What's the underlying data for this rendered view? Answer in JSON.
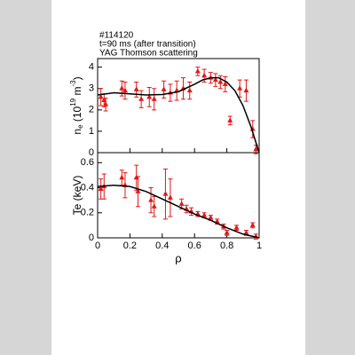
{
  "chart_data": [
    {
      "type": "scatter",
      "annotations": [
        "#114120",
        "t=90 ms (after transition)",
        "YAG Thomson scattering"
      ],
      "ylabel_parts": [
        "n",
        "e",
        " (10",
        "19",
        " m",
        "-3",
        ")"
      ],
      "xlim": [
        0,
        1
      ],
      "xticks": [
        0,
        0.2,
        0.4,
        0.6,
        0.8,
        1
      ],
      "ylim": [
        0,
        4.4
      ],
      "yticks": [
        0,
        1,
        2,
        3,
        4
      ],
      "series": [
        {
          "style": "points",
          "color": "#e01818",
          "x": [
            0.02,
            0.04,
            0.05,
            0.15,
            0.17,
            0.24,
            0.27,
            0.32,
            0.35,
            0.41,
            0.45,
            0.49,
            0.53,
            0.57,
            0.62,
            0.66,
            0.7,
            0.73,
            0.76,
            0.79,
            0.82,
            0.88,
            0.92,
            0.96,
            0.98
          ],
          "values": [
            2.6,
            2.45,
            2.25,
            3.0,
            2.9,
            2.95,
            2.5,
            2.6,
            2.5,
            2.95,
            2.8,
            2.9,
            3.0,
            2.9,
            3.8,
            3.6,
            3.5,
            3.4,
            3.3,
            3.2,
            1.5,
            3.0,
            2.9,
            1.1,
            0.15
          ],
          "errors": [
            0.4,
            0.3,
            0.3,
            0.35,
            0.4,
            0.35,
            0.4,
            0.45,
            0.5,
            0.4,
            0.4,
            0.45,
            0.5,
            0.4,
            0.2,
            0.3,
            0.25,
            0.3,
            0.3,
            0.35,
            0.2,
            0.4,
            0.5,
            0.4,
            0.2
          ]
        },
        {
          "style": "line",
          "color": "#000000",
          "x": [
            0,
            0.1,
            0.2,
            0.3,
            0.4,
            0.5,
            0.6,
            0.65,
            0.7,
            0.75,
            0.8,
            0.85,
            0.9,
            0.95,
            1.0
          ],
          "values": [
            2.7,
            2.8,
            2.75,
            2.7,
            2.72,
            2.85,
            3.2,
            3.4,
            3.5,
            3.5,
            3.3,
            2.9,
            2.2,
            1.2,
            0
          ]
        }
      ]
    },
    {
      "type": "scatter",
      "ylabel": "Te (keV)",
      "xlabel": "ρ",
      "xlim": [
        0,
        1
      ],
      "xticks": [
        0,
        0.2,
        0.4,
        0.6,
        0.8,
        1
      ],
      "ylim": [
        0,
        0.68
      ],
      "yticks": [
        0,
        0.2,
        0.4,
        0.6
      ],
      "series": [
        {
          "style": "points",
          "color": "#e01818",
          "x": [
            0.02,
            0.04,
            0.15,
            0.17,
            0.24,
            0.25,
            0.33,
            0.35,
            0.42,
            0.45,
            0.52,
            0.55,
            0.58,
            0.62,
            0.66,
            0.7,
            0.74,
            0.78,
            0.8,
            0.86,
            0.92,
            0.96,
            0.98
          ],
          "values": [
            0.39,
            0.41,
            0.48,
            0.42,
            0.48,
            0.37,
            0.3,
            0.25,
            0.35,
            0.32,
            0.27,
            0.23,
            0.21,
            0.19,
            0.18,
            0.16,
            0.13,
            0.09,
            0.04,
            0.08,
            0.04,
            0.1,
            0.01
          ],
          "errors": [
            0.08,
            0.1,
            0.06,
            0.1,
            0.1,
            0.12,
            0.1,
            0.08,
            0.2,
            0.15,
            0.04,
            0.03,
            0.03,
            0.02,
            0.02,
            0.02,
            0.02,
            0.02,
            0.02,
            0.02,
            0.02,
            0.02,
            0.02
          ]
        },
        {
          "style": "line",
          "color": "#000000",
          "x": [
            0,
            0.1,
            0.2,
            0.3,
            0.4,
            0.5,
            0.6,
            0.7,
            0.8,
            0.9,
            1.0
          ],
          "values": [
            0.41,
            0.42,
            0.41,
            0.37,
            0.31,
            0.25,
            0.19,
            0.14,
            0.08,
            0.03,
            0
          ]
        }
      ]
    }
  ]
}
